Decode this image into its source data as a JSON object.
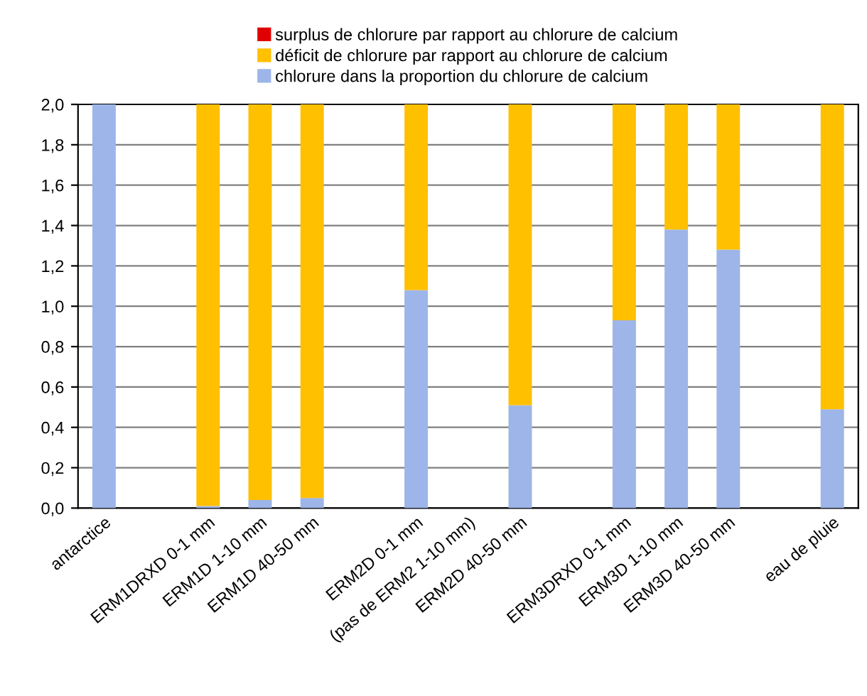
{
  "chart_data": {
    "type": "bar",
    "stacked": true,
    "categories": [
      "antarctice",
      null,
      "ERM1DRXD 0-1 mm",
      "ERM1D 1-10 mm",
      "ERM1D 40-50 mm",
      null,
      "ERM2D 0-1 mm",
      "(pas de ERM2 1-10 mm)",
      "ERM2D 40-50 mm",
      null,
      "ERM3DRXD 0-1 mm",
      "ERM3D 1-10 mm",
      "ERM3D 40-50 mm",
      null,
      "eau de pluie"
    ],
    "series": [
      {
        "name": "chlorure dans la proportion du chlorure de calcium",
        "color": "#9db5e8",
        "values": [
          2.0,
          null,
          0.01,
          0.04,
          0.05,
          null,
          1.08,
          null,
          0.51,
          null,
          0.93,
          1.38,
          1.28,
          null,
          0.49
        ]
      },
      {
        "name": "déficit de chlorure par rapport au chlorure de calcium",
        "color": "#ffc000",
        "values": [
          null,
          null,
          1.99,
          1.96,
          1.95,
          null,
          0.92,
          null,
          1.49,
          null,
          1.07,
          0.62,
          0.72,
          null,
          1.51
        ]
      },
      {
        "name": "surplus de chlorure par rapport au chlorure de calcium",
        "color": "#e00000",
        "values": [
          null,
          null,
          null,
          null,
          null,
          null,
          null,
          null,
          null,
          null,
          null,
          null,
          null,
          null,
          null
        ]
      }
    ],
    "ylim": [
      0,
      2
    ],
    "yticks": [
      {
        "value": 0,
        "label": "0,0"
      },
      {
        "value": 0.2,
        "label": "0,2"
      },
      {
        "value": 0.4,
        "label": "0,4"
      },
      {
        "value": 0.6,
        "label": "0,6"
      },
      {
        "value": 0.8,
        "label": "0,8"
      },
      {
        "value": 1.0,
        "label": "1,0"
      },
      {
        "value": 1.2,
        "label": "1,2"
      },
      {
        "value": 1.4,
        "label": "1,4"
      },
      {
        "value": 1.6,
        "label": "1,6"
      },
      {
        "value": 1.8,
        "label": "1,8"
      },
      {
        "value": 2.0,
        "label": "2,0"
      }
    ],
    "grid": "y",
    "legend": "top"
  }
}
